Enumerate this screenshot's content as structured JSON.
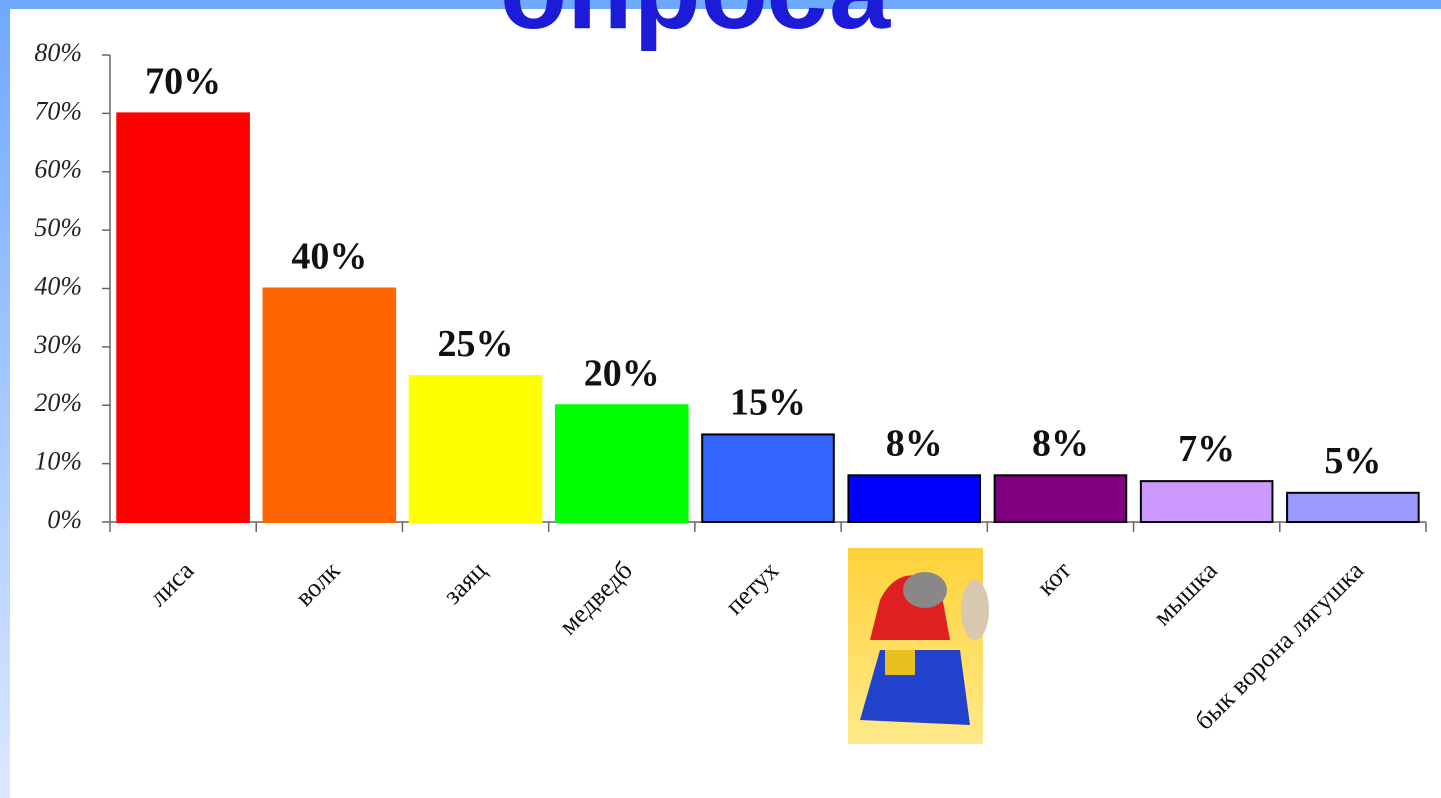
{
  "chart_data": {
    "type": "bar",
    "title": "опроса",
    "categories": [
      "лиса",
      "волк",
      "заяц",
      "медведб",
      "петух",
      null,
      "кот",
      "мышка",
      "бык ворона лягушка"
    ],
    "values": [
      70,
      40,
      25,
      20,
      15,
      8,
      8,
      7,
      5
    ],
    "value_labels": [
      "70%",
      "40%",
      "25%",
      "20%",
      "15%",
      "8%",
      "8%",
      "7%",
      "5%"
    ],
    "colors": [
      "#ff0000",
      "#ff6600",
      "#ffff00",
      "#00ff00",
      "#3366ff",
      "#0000ff",
      "#800080",
      "#cc99ff",
      "#9999ff"
    ],
    "edgecolors": [
      "#ff0000",
      "#ff6600",
      "#ffff00",
      "#00ff00",
      "#000000",
      "#000000",
      "#000000",
      "#000000",
      "#000000"
    ],
    "ylim": [
      0,
      80
    ],
    "yticks": [
      {
        "value": 0,
        "label": "0%"
      },
      {
        "value": 10,
        "label": "10%"
      },
      {
        "value": 20,
        "label": "20%"
      },
      {
        "value": 30,
        "label": "30%"
      },
      {
        "value": 40,
        "label": "40%"
      },
      {
        "value": 50,
        "label": "50%"
      },
      {
        "value": 60,
        "label": "60%"
      },
      {
        "value": 70,
        "label": "70%"
      },
      {
        "value": 80,
        "label": "80%"
      }
    ],
    "grid": false
  }
}
